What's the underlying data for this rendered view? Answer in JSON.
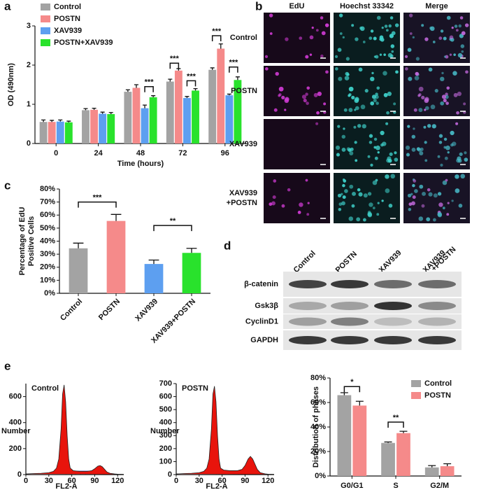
{
  "panel_labels": [
    "a",
    "b",
    "c",
    "d",
    "e"
  ],
  "chart_data": [
    {
      "type": "bar",
      "categories": [
        "0",
        "24",
        "48",
        "72",
        "96"
      ],
      "xlabel": "Time (hours)",
      "ylabel": "OD (490nm)",
      "ylim": [
        0,
        3
      ],
      "yticks": [
        0,
        1,
        2,
        3
      ],
      "legend": "upper left",
      "series": [
        {
          "name": "Control",
          "color": "#a3a3a3",
          "values": [
            0.55,
            0.85,
            1.32,
            1.58,
            1.88
          ],
          "errors": [
            0.05,
            0.04,
            0.05,
            0.06,
            0.05
          ]
        },
        {
          "name": "POSTN",
          "color": "#f58a8a",
          "values": [
            0.55,
            0.86,
            1.42,
            1.86,
            2.42
          ],
          "errors": [
            0.04,
            0.04,
            0.08,
            0.05,
            0.12
          ]
        },
        {
          "name": "XAV939",
          "color": "#5d9ff0",
          "values": [
            0.56,
            0.76,
            0.9,
            1.16,
            1.23
          ],
          "errors": [
            0.04,
            0.04,
            0.08,
            0.04,
            0.03
          ]
        },
        {
          "name": "POSTN+XAV939",
          "color": "#29e22c",
          "values": [
            0.54,
            0.75,
            1.18,
            1.35,
            1.62
          ],
          "errors": [
            0.03,
            0.04,
            0.04,
            0.05,
            0.08
          ]
        }
      ],
      "annotations": [
        "***",
        "***",
        "***",
        "***",
        "***"
      ]
    },
    {
      "type": "bar",
      "categories": [
        "Control",
        "POSTN",
        "XAV939",
        "XAV939+POSTN"
      ],
      "ylabel": [
        "Percentage of EdU",
        "Positive Cells"
      ],
      "values": [
        34.5,
        55.5,
        22.5,
        31
      ],
      "errors": [
        4,
        5,
        3,
        3.5
      ],
      "colors": [
        "#a3a3a3",
        "#f58a8a",
        "#5d9ff0",
        "#29e22c"
      ],
      "ylim": [
        0,
        80
      ],
      "yticks": [
        {
          "value": 0,
          "label": "0%"
        },
        {
          "value": 10,
          "label": "10%"
        },
        {
          "value": 20,
          "label": "20%"
        },
        {
          "value": 30,
          "label": "30%"
        },
        {
          "value": 40,
          "label": "40%"
        },
        {
          "value": 50,
          "label": "50%"
        },
        {
          "value": 60,
          "label": "60%"
        },
        {
          "value": 70,
          "label": "70%"
        },
        {
          "value": 80,
          "label": "80%"
        }
      ],
      "annotations": [
        "***",
        "**"
      ]
    },
    {
      "type": "area",
      "title": "Control",
      "xlabel": "FL2-A",
      "ylabel": "Number",
      "color": "#e8140c",
      "x": [
        0,
        10,
        20,
        30,
        36,
        40,
        43,
        46,
        48,
        50,
        52,
        54,
        56,
        58,
        62,
        70,
        80,
        86,
        90,
        94,
        97,
        100,
        103,
        106,
        110,
        116,
        120,
        128
      ],
      "values": [
        5,
        8,
        10,
        15,
        25,
        50,
        120,
        350,
        620,
        690,
        560,
        300,
        120,
        50,
        30,
        25,
        25,
        30,
        45,
        65,
        70,
        60,
        40,
        20,
        10,
        5,
        3,
        2
      ],
      "xlim": [
        0,
        128
      ],
      "xticks": [
        0,
        30,
        60,
        90,
        120
      ],
      "ylim": [
        0,
        700
      ],
      "yticks": [
        0,
        200,
        400,
        600
      ]
    },
    {
      "type": "area",
      "title": "POSTN",
      "xlabel": "FL2-A",
      "ylabel": "Number",
      "color": "#e8140c",
      "x": [
        0,
        10,
        20,
        30,
        36,
        40,
        43,
        46,
        48,
        50,
        52,
        54,
        56,
        58,
        62,
        70,
        80,
        86,
        90,
        94,
        97,
        100,
        103,
        106,
        110,
        116,
        120,
        128
      ],
      "values": [
        5,
        8,
        10,
        15,
        25,
        50,
        120,
        350,
        620,
        680,
        560,
        300,
        120,
        50,
        35,
        30,
        30,
        40,
        70,
        120,
        140,
        120,
        80,
        40,
        15,
        6,
        3,
        2
      ],
      "xlim": [
        0,
        128
      ],
      "xticks": [
        0,
        30,
        60,
        90,
        120
      ],
      "ylim": [
        0,
        700
      ],
      "yticks": [
        0,
        100,
        200,
        300,
        400,
        500,
        600,
        700
      ]
    },
    {
      "type": "bar",
      "categories": [
        "G0/G1",
        "S",
        "G2/M"
      ],
      "ylabel": "Distribution of phases",
      "legend": "upper right",
      "series": [
        {
          "name": "Control",
          "color": "#a3a3a3",
          "values": [
            66,
            27,
            7
          ],
          "errors": [
            2,
            0.8,
            1.5
          ]
        },
        {
          "name": "POSTN",
          "color": "#f58a8a",
          "values": [
            57.5,
            35,
            8
          ],
          "errors": [
            3.5,
            1.5,
            2
          ]
        }
      ],
      "ylim": [
        0,
        80
      ],
      "yticks": [
        {
          "value": 0,
          "label": "0%"
        },
        {
          "value": 20,
          "label": "20%"
        },
        {
          "value": 40,
          "label": "40%"
        },
        {
          "value": 60,
          "label": "60%"
        },
        {
          "value": 80,
          "label": "80%"
        }
      ],
      "annotations": [
        "*",
        "**"
      ]
    }
  ],
  "image_panel": {
    "columns": [
      "EdU",
      "Hoechst 33342",
      "Merge"
    ],
    "rows": [
      [
        "Control"
      ],
      [
        "POSTN"
      ],
      [
        "XAV939"
      ],
      [
        "XAV939",
        "+POSTN"
      ]
    ]
  },
  "blot_panel": {
    "lanes": [
      [
        "Control"
      ],
      [
        "POSTN"
      ],
      [
        "XAV939"
      ],
      [
        "XAV939",
        "+POSTN"
      ]
    ],
    "proteins": [
      "β-catenin",
      "Gsk3β",
      "CyclinD1",
      "GAPDH"
    ]
  }
}
